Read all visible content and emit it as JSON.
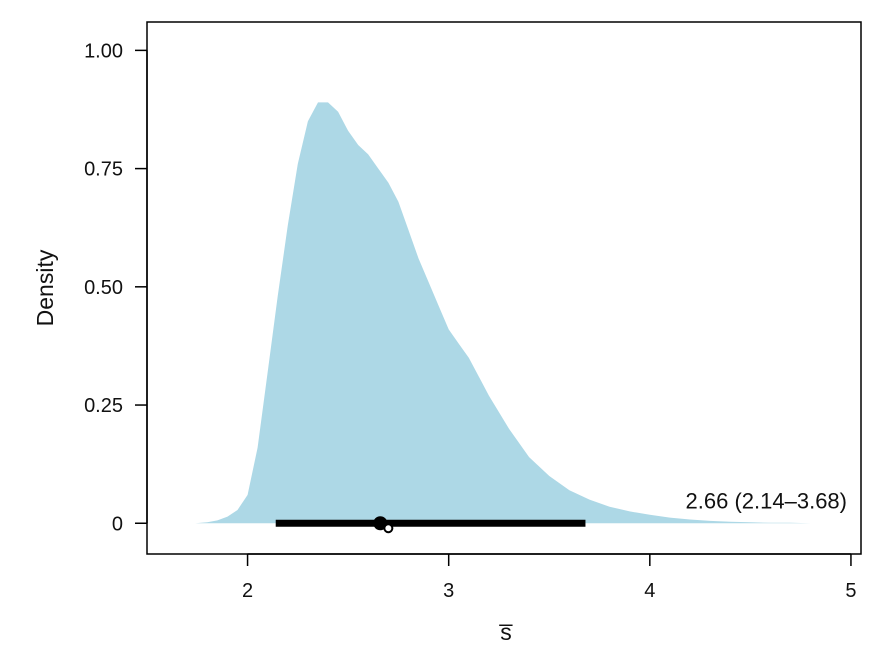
{
  "chart_data": {
    "type": "area",
    "xlabel": "s̅",
    "ylabel": "Density",
    "xlim": [
      1.5,
      5.05
    ],
    "ylim": [
      -0.065,
      1.06
    ],
    "x_ticks": [
      2,
      3,
      4,
      5
    ],
    "x_tick_labels": [
      "2",
      "3",
      "4",
      "5"
    ],
    "y_ticks": [
      0,
      0.25,
      0.5,
      0.75,
      1.0
    ],
    "y_tick_labels": [
      "0",
      "0.25",
      "0.50",
      "0.75",
      "1.00"
    ],
    "series": [
      {
        "x": [
          1.74,
          1.8,
          1.85,
          1.9,
          1.95,
          2.0,
          2.05,
          2.1,
          2.15,
          2.2,
          2.25,
          2.3,
          2.35,
          2.4,
          2.45,
          2.5,
          2.55,
          2.6,
          2.65,
          2.7,
          2.75,
          2.8,
          2.85,
          2.9,
          2.95,
          3.0,
          3.05,
          3.1,
          3.15,
          3.2,
          3.3,
          3.4,
          3.5,
          3.6,
          3.7,
          3.8,
          3.9,
          4.0,
          4.1,
          4.2,
          4.3,
          4.4,
          4.5,
          4.6,
          4.7,
          4.8,
          4.9,
          5.0
        ],
        "values": [
          0.0,
          0.002,
          0.006,
          0.014,
          0.028,
          0.06,
          0.16,
          0.32,
          0.48,
          0.63,
          0.76,
          0.85,
          0.89,
          0.89,
          0.87,
          0.83,
          0.8,
          0.78,
          0.75,
          0.72,
          0.68,
          0.62,
          0.56,
          0.51,
          0.46,
          0.41,
          0.38,
          0.35,
          0.31,
          0.27,
          0.2,
          0.14,
          0.1,
          0.07,
          0.05,
          0.035,
          0.025,
          0.018,
          0.012,
          0.008,
          0.005,
          0.003,
          0.002,
          0.001,
          0.001,
          0.0,
          0.0,
          0.0
        ],
        "color": "#add8e6"
      }
    ],
    "interval": {
      "low": 2.14,
      "high": 3.68
    },
    "point_estimate": 2.66,
    "secondary_point": 2.7,
    "annotation": "2.66 (2.14–3.68)"
  }
}
